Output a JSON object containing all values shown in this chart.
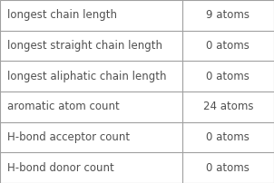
{
  "rows": [
    {
      "label": "longest chain length",
      "value": "9 atoms"
    },
    {
      "label": "longest straight chain length",
      "value": "0 atoms"
    },
    {
      "label": "longest aliphatic chain length",
      "value": "0 atoms"
    },
    {
      "label": "aromatic atom count",
      "value": "24 atoms"
    },
    {
      "label": "H-bond acceptor count",
      "value": "0 atoms"
    },
    {
      "label": "H-bond donor count",
      "value": "0 atoms"
    }
  ],
  "background_color": "#ffffff",
  "border_color": "#a0a0a0",
  "divider_color": "#a0a0a0",
  "label_color": "#505050",
  "value_color": "#505050",
  "label_fontsize": 8.5,
  "value_fontsize": 8.5,
  "col_split": 0.665,
  "figsize": [
    3.02,
    2.02
  ],
  "dpi": 100
}
